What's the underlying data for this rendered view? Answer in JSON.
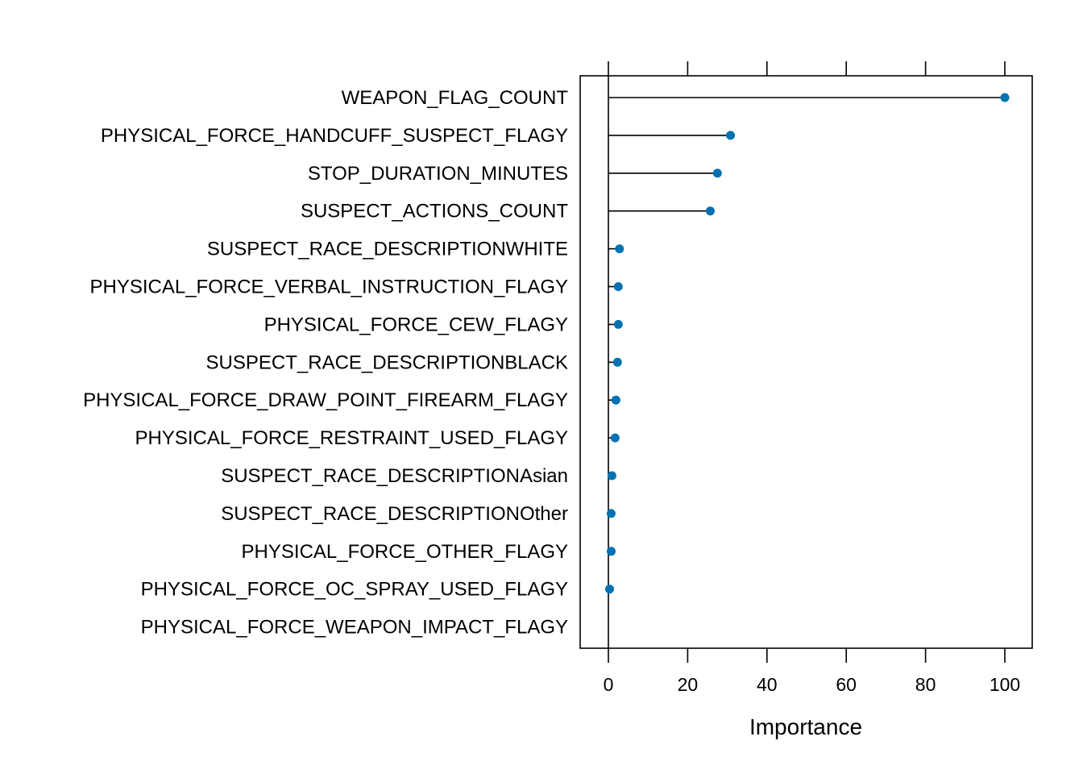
{
  "chart_data": {
    "type": "dot",
    "xlabel": "Importance",
    "xlim": [
      -7,
      107
    ],
    "xticks": [
      0,
      20,
      40,
      60,
      80,
      100
    ],
    "grid": false,
    "colors": {
      "point": "#0072B2",
      "line": "#000000",
      "frame": "#000000"
    },
    "categories": [
      "WEAPON_FLAG_COUNT",
      "PHYSICAL_FORCE_HANDCUFF_SUSPECT_FLAGY",
      "STOP_DURATION_MINUTES",
      "SUSPECT_ACTIONS_COUNT",
      "SUSPECT_RACE_DESCRIPTIONWHITE",
      "PHYSICAL_FORCE_VERBAL_INSTRUCTION_FLAGY",
      "PHYSICAL_FORCE_CEW_FLAGY",
      "SUSPECT_RACE_DESCRIPTIONBLACK",
      "PHYSICAL_FORCE_DRAW_POINT_FIREARM_FLAGY",
      "PHYSICAL_FORCE_RESTRAINT_USED_FLAGY",
      "SUSPECT_RACE_DESCRIPTIONAsian",
      "SUSPECT_RACE_DESCRIPTIONOther",
      "PHYSICAL_FORCE_OTHER_FLAGY",
      "PHYSICAL_FORCE_OC_SPRAY_USED_FLAGY",
      "PHYSICAL_FORCE_WEAPON_IMPACT_FLAGY"
    ],
    "values": [
      100,
      30.8,
      27.5,
      25.7,
      2.8,
      2.5,
      2.5,
      2.3,
      1.9,
      1.7,
      0.9,
      0.7,
      0.7,
      0.3,
      null
    ]
  }
}
